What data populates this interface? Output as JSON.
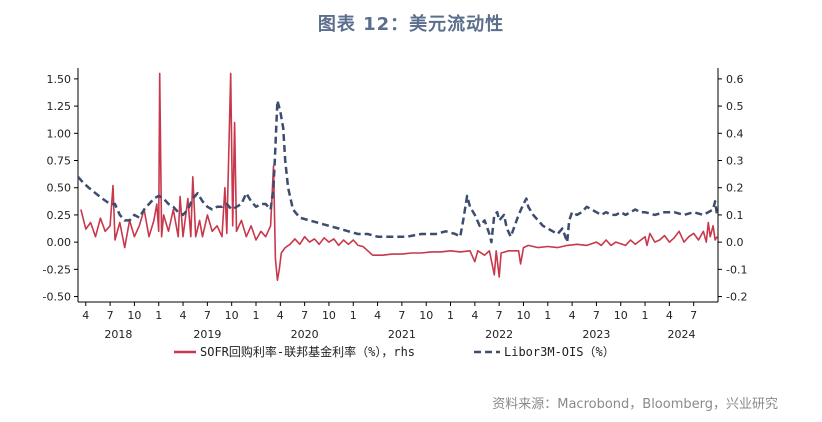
{
  "title": "图表 12：美元流动性",
  "source": "资料来源：Macrobond，Bloomberg，兴业研究",
  "chart_data": {
    "type": "line",
    "left_axis": {
      "ticks": [
        "1.50",
        "1.25",
        "1.00",
        "0.75",
        "0.50",
        "0.25",
        "0.00",
        "-0.25",
        "-0.50"
      ],
      "range": [
        -0.55,
        1.6
      ]
    },
    "right_axis": {
      "ticks": [
        "0.6",
        "0.5",
        "0.4",
        "0.3",
        "0.2",
        "0.1",
        "0.0",
        "-0.1",
        "-0.2"
      ],
      "range": [
        -0.22,
        0.64
      ]
    },
    "x_month_ticks": [
      "4",
      "7",
      "10",
      "1",
      "4",
      "7",
      "10",
      "1",
      "4",
      "7",
      "10",
      "1",
      "4",
      "7",
      "10",
      "1",
      "4",
      "7",
      "10",
      "1",
      "4",
      "7",
      "10",
      "1",
      "4",
      "7"
    ],
    "year_labels": [
      "2018",
      "2019",
      "2020",
      "2021",
      "2022",
      "2023",
      "2024"
    ],
    "x_range": [
      2018.17,
      2024.75
    ],
    "series": [
      {
        "name": "SOFR回购利率-联邦基金利率（%），rhs",
        "color": "#c8384c",
        "axis": "left",
        "style": "solid",
        "points": [
          [
            2018.2,
            0.3
          ],
          [
            2018.25,
            0.12
          ],
          [
            2018.3,
            0.18
          ],
          [
            2018.35,
            0.05
          ],
          [
            2018.4,
            0.22
          ],
          [
            2018.45,
            0.1
          ],
          [
            2018.5,
            0.15
          ],
          [
            2018.53,
            0.52
          ],
          [
            2018.55,
            0.02
          ],
          [
            2018.6,
            0.18
          ],
          [
            2018.65,
            -0.05
          ],
          [
            2018.7,
            0.2
          ],
          [
            2018.75,
            0.05
          ],
          [
            2018.8,
            0.15
          ],
          [
            2018.85,
            0.3
          ],
          [
            2018.9,
            0.05
          ],
          [
            2018.95,
            0.2
          ],
          [
            2018.98,
            0.35
          ],
          [
            2019.0,
            0.1
          ],
          [
            2019.01,
            1.55
          ],
          [
            2019.03,
            0.05
          ],
          [
            2019.05,
            0.25
          ],
          [
            2019.1,
            0.1
          ],
          [
            2019.15,
            0.3
          ],
          [
            2019.2,
            0.05
          ],
          [
            2019.22,
            0.42
          ],
          [
            2019.25,
            0.05
          ],
          [
            2019.3,
            0.4
          ],
          [
            2019.33,
            0.05
          ],
          [
            2019.35,
            0.6
          ],
          [
            2019.38,
            0.05
          ],
          [
            2019.42,
            0.2
          ],
          [
            2019.45,
            0.05
          ],
          [
            2019.5,
            0.25
          ],
          [
            2019.55,
            0.1
          ],
          [
            2019.6,
            0.15
          ],
          [
            2019.65,
            0.05
          ],
          [
            2019.68,
            0.5
          ],
          [
            2019.7,
            0.08
          ],
          [
            2019.74,
            1.55
          ],
          [
            2019.76,
            0.15
          ],
          [
            2019.78,
            1.1
          ],
          [
            2019.8,
            0.1
          ],
          [
            2019.85,
            0.2
          ],
          [
            2019.9,
            0.05
          ],
          [
            2019.95,
            0.15
          ],
          [
            2020.0,
            0.02
          ],
          [
            2020.05,
            0.1
          ],
          [
            2020.1,
            0.05
          ],
          [
            2020.15,
            0.15
          ],
          [
            2020.18,
            0.7
          ],
          [
            2020.2,
            -0.15
          ],
          [
            2020.22,
            -0.35
          ],
          [
            2020.24,
            -0.25
          ],
          [
            2020.26,
            -0.1
          ],
          [
            2020.3,
            -0.05
          ],
          [
            2020.35,
            -0.02
          ],
          [
            2020.4,
            0.03
          ],
          [
            2020.45,
            -0.02
          ],
          [
            2020.5,
            0.05
          ],
          [
            2020.55,
            0.0
          ],
          [
            2020.6,
            0.03
          ],
          [
            2020.65,
            -0.02
          ],
          [
            2020.7,
            0.04
          ],
          [
            2020.75,
            0.0
          ],
          [
            2020.8,
            0.03
          ],
          [
            2020.85,
            -0.03
          ],
          [
            2020.9,
            0.02
          ],
          [
            2020.95,
            -0.02
          ],
          [
            2021.0,
            0.02
          ],
          [
            2021.05,
            -0.03
          ],
          [
            2021.1,
            -0.04
          ],
          [
            2021.15,
            -0.08
          ],
          [
            2021.2,
            -0.12
          ],
          [
            2021.3,
            -0.12
          ],
          [
            2021.4,
            -0.11
          ],
          [
            2021.5,
            -0.11
          ],
          [
            2021.6,
            -0.1
          ],
          [
            2021.7,
            -0.1
          ],
          [
            2021.8,
            -0.09
          ],
          [
            2021.9,
            -0.09
          ],
          [
            2022.0,
            -0.08
          ],
          [
            2022.1,
            -0.09
          ],
          [
            2022.2,
            -0.08
          ],
          [
            2022.25,
            -0.18
          ],
          [
            2022.28,
            -0.08
          ],
          [
            2022.35,
            -0.12
          ],
          [
            2022.4,
            -0.08
          ],
          [
            2022.45,
            -0.3
          ],
          [
            2022.47,
            -0.08
          ],
          [
            2022.5,
            -0.32
          ],
          [
            2022.52,
            -0.1
          ],
          [
            2022.6,
            -0.08
          ],
          [
            2022.7,
            -0.08
          ],
          [
            2022.72,
            -0.2
          ],
          [
            2022.75,
            -0.05
          ],
          [
            2022.8,
            -0.03
          ],
          [
            2022.9,
            -0.05
          ],
          [
            2023.0,
            -0.04
          ],
          [
            2023.1,
            -0.05
          ],
          [
            2023.2,
            -0.03
          ],
          [
            2023.3,
            -0.02
          ],
          [
            2023.4,
            -0.03
          ],
          [
            2023.5,
            0.0
          ],
          [
            2023.55,
            -0.03
          ],
          [
            2023.6,
            0.02
          ],
          [
            2023.65,
            -0.03
          ],
          [
            2023.7,
            0.0
          ],
          [
            2023.8,
            -0.03
          ],
          [
            2023.85,
            0.02
          ],
          [
            2023.9,
            -0.02
          ],
          [
            2024.0,
            0.05
          ],
          [
            2024.02,
            -0.03
          ],
          [
            2024.05,
            0.08
          ],
          [
            2024.1,
            0.0
          ],
          [
            2024.15,
            0.02
          ],
          [
            2024.2,
            0.06
          ],
          [
            2024.25,
            0.0
          ],
          [
            2024.3,
            0.04
          ],
          [
            2024.35,
            0.1
          ],
          [
            2024.4,
            0.0
          ],
          [
            2024.45,
            0.05
          ],
          [
            2024.5,
            0.08
          ],
          [
            2024.55,
            0.02
          ],
          [
            2024.6,
            0.1
          ],
          [
            2024.63,
            0.0
          ],
          [
            2024.65,
            0.18
          ],
          [
            2024.67,
            0.05
          ],
          [
            2024.7,
            0.15
          ],
          [
            2024.72,
            0.02
          ],
          [
            2024.74,
            0.05
          ]
        ]
      },
      {
        "name": "Libor3M-OIS（%）",
        "color": "#3c4d6d",
        "axis": "right",
        "style": "dashed",
        "points": [
          [
            2018.17,
            0.24
          ],
          [
            2018.22,
            0.22
          ],
          [
            2018.28,
            0.2
          ],
          [
            2018.35,
            0.18
          ],
          [
            2018.42,
            0.16
          ],
          [
            2018.5,
            0.14
          ],
          [
            2018.55,
            0.14
          ],
          [
            2018.6,
            0.1
          ],
          [
            2018.65,
            0.08
          ],
          [
            2018.7,
            0.08
          ],
          [
            2018.75,
            0.1
          ],
          [
            2018.8,
            0.09
          ],
          [
            2018.85,
            0.12
          ],
          [
            2018.9,
            0.14
          ],
          [
            2018.95,
            0.16
          ],
          [
            2019.0,
            0.17
          ],
          [
            2019.05,
            0.16
          ],
          [
            2019.1,
            0.14
          ],
          [
            2019.15,
            0.13
          ],
          [
            2019.2,
            0.11
          ],
          [
            2019.25,
            0.1
          ],
          [
            2019.3,
            0.12
          ],
          [
            2019.35,
            0.16
          ],
          [
            2019.4,
            0.18
          ],
          [
            2019.45,
            0.15
          ],
          [
            2019.5,
            0.13
          ],
          [
            2019.55,
            0.12
          ],
          [
            2019.6,
            0.13
          ],
          [
            2019.65,
            0.13
          ],
          [
            2019.7,
            0.14
          ],
          [
            2019.75,
            0.12
          ],
          [
            2019.8,
            0.13
          ],
          [
            2019.85,
            0.14
          ],
          [
            2019.9,
            0.18
          ],
          [
            2019.95,
            0.15
          ],
          [
            2020.0,
            0.13
          ],
          [
            2020.05,
            0.14
          ],
          [
            2020.1,
            0.14
          ],
          [
            2020.15,
            0.12
          ],
          [
            2020.18,
            0.2
          ],
          [
            2020.2,
            0.35
          ],
          [
            2020.22,
            0.52
          ],
          [
            2020.25,
            0.48
          ],
          [
            2020.28,
            0.42
          ],
          [
            2020.3,
            0.3
          ],
          [
            2020.33,
            0.2
          ],
          [
            2020.38,
            0.12
          ],
          [
            2020.45,
            0.09
          ],
          [
            2020.55,
            0.08
          ],
          [
            2020.65,
            0.07
          ],
          [
            2020.75,
            0.06
          ],
          [
            2020.85,
            0.05
          ],
          [
            2020.95,
            0.04
          ],
          [
            2021.05,
            0.03
          ],
          [
            2021.15,
            0.03
          ],
          [
            2021.25,
            0.02
          ],
          [
            2021.4,
            0.02
          ],
          [
            2021.55,
            0.02
          ],
          [
            2021.7,
            0.03
          ],
          [
            2021.85,
            0.03
          ],
          [
            2021.95,
            0.04
          ],
          [
            2022.05,
            0.03
          ],
          [
            2022.1,
            0.02
          ],
          [
            2022.13,
            0.08
          ],
          [
            2022.17,
            0.17
          ],
          [
            2022.2,
            0.13
          ],
          [
            2022.25,
            0.1
          ],
          [
            2022.3,
            0.06
          ],
          [
            2022.35,
            0.08
          ],
          [
            2022.4,
            0.03
          ],
          [
            2022.42,
            0.0
          ],
          [
            2022.45,
            0.1
          ],
          [
            2022.48,
            0.11
          ],
          [
            2022.5,
            0.08
          ],
          [
            2022.55,
            0.1
          ],
          [
            2022.58,
            0.05
          ],
          [
            2022.62,
            0.02
          ],
          [
            2022.65,
            0.05
          ],
          [
            2022.7,
            0.1
          ],
          [
            2022.75,
            0.14
          ],
          [
            2022.78,
            0.16
          ],
          [
            2022.8,
            0.13
          ],
          [
            2022.85,
            0.1
          ],
          [
            2022.9,
            0.08
          ],
          [
            2022.95,
            0.06
          ],
          [
            2023.0,
            0.05
          ],
          [
            2023.05,
            0.04
          ],
          [
            2023.1,
            0.03
          ],
          [
            2023.15,
            0.05
          ],
          [
            2023.18,
            0.02
          ],
          [
            2023.2,
            0.0
          ],
          [
            2023.22,
            0.08
          ],
          [
            2023.25,
            0.11
          ],
          [
            2023.3,
            0.1
          ],
          [
            2023.35,
            0.11
          ],
          [
            2023.4,
            0.13
          ],
          [
            2023.45,
            0.12
          ],
          [
            2023.5,
            0.11
          ],
          [
            2023.55,
            0.1
          ],
          [
            2023.6,
            0.11
          ],
          [
            2023.65,
            0.1
          ],
          [
            2023.7,
            0.1
          ],
          [
            2023.75,
            0.11
          ],
          [
            2023.8,
            0.1
          ],
          [
            2023.85,
            0.11
          ],
          [
            2023.9,
            0.12
          ],
          [
            2023.95,
            0.11
          ],
          [
            2024.0,
            0.11
          ],
          [
            2024.1,
            0.1
          ],
          [
            2024.2,
            0.11
          ],
          [
            2024.3,
            0.11
          ],
          [
            2024.4,
            0.1
          ],
          [
            2024.5,
            0.11
          ],
          [
            2024.6,
            0.1
          ],
          [
            2024.65,
            0.11
          ],
          [
            2024.7,
            0.12
          ],
          [
            2024.72,
            0.15
          ],
          [
            2024.74,
            0.1
          ]
        ]
      }
    ]
  }
}
